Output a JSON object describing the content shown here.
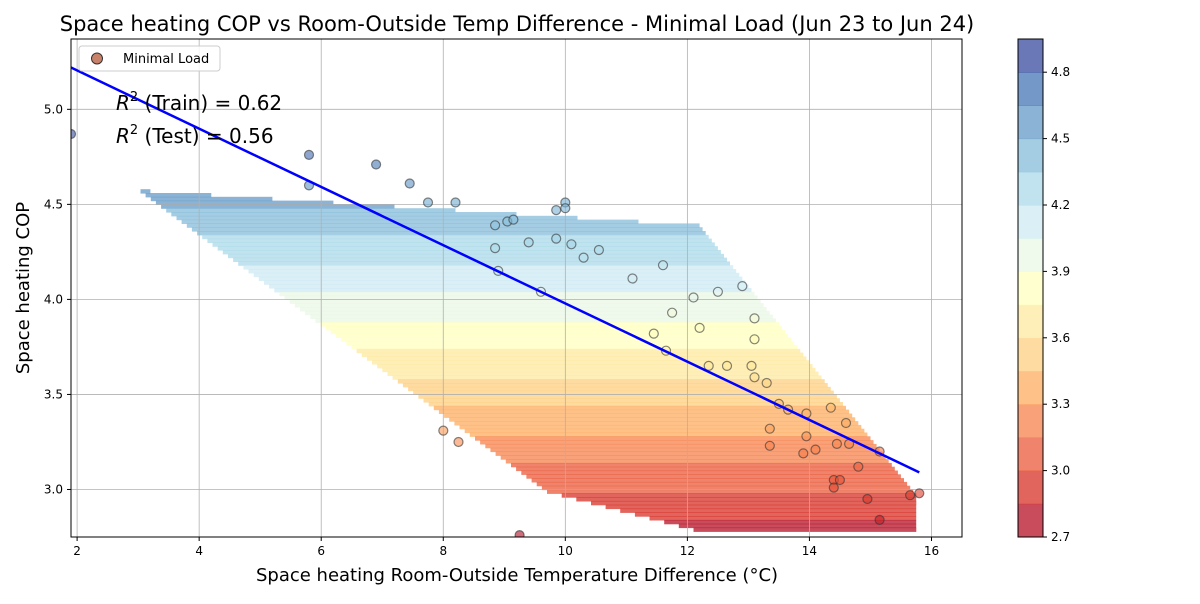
{
  "chart_data": {
    "type": "scatter",
    "title": "Space heating COP vs Room-Outside Temp Difference - Minimal Load (Jun 23 to Jun 24)",
    "xlabel": "Space heating Room-Outside Temperature Difference (°C)",
    "ylabel": "Space heating COP",
    "xlim": [
      1.9,
      16.5
    ],
    "ylim": [
      2.75,
      5.37
    ],
    "xticks": [
      2,
      4,
      6,
      8,
      10,
      12,
      14,
      16
    ],
    "yticks": [
      3.0,
      3.5,
      4.0,
      4.5,
      5.0
    ],
    "xtick_labels": [
      "2",
      "4",
      "6",
      "8",
      "10",
      "12",
      "14",
      "16"
    ],
    "ytick_labels": [
      "3.0",
      "3.5",
      "4.0",
      "4.5",
      "5.0"
    ],
    "grid": true,
    "legend": {
      "position": "top-left",
      "entries": [
        {
          "label": "Minimal Load",
          "marker": "circle",
          "color": "#c8826a"
        }
      ]
    },
    "annotations": [
      {
        "base": "R",
        "sup": "2",
        "text": " (Train) = 0.62"
      },
      {
        "base": "R",
        "sup": "2",
        "text": " (Test) = 0.56"
      }
    ],
    "regression_line": {
      "color": "#0000ff",
      "x": [
        1.9,
        15.8
      ],
      "y": [
        5.22,
        3.09
      ]
    },
    "colorbar": {
      "min": 2.7,
      "max": 4.95,
      "ticks": [
        2.7,
        3.0,
        3.3,
        3.6,
        3.9,
        4.2,
        4.5,
        4.8
      ],
      "tick_labels": [
        "2.7",
        "3.0",
        "3.3",
        "3.6",
        "3.9",
        "4.2",
        "4.5",
        "4.8"
      ],
      "level_step": 0.15,
      "colormap": "RdYlBu"
    },
    "points_edge_color": "#333333",
    "points": [
      [
        1.9,
        4.87
      ],
      [
        5.8,
        4.76
      ],
      [
        6.9,
        4.71
      ],
      [
        10.0,
        4.51
      ],
      [
        12.9,
        4.07
      ],
      [
        5.8,
        4.6
      ],
      [
        7.45,
        4.61
      ],
      [
        7.75,
        4.51
      ],
      [
        8.2,
        4.51
      ],
      [
        8.85,
        4.39
      ],
      [
        9.05,
        4.41
      ],
      [
        9.15,
        4.42
      ],
      [
        9.85,
        4.47
      ],
      [
        10.0,
        4.48
      ],
      [
        8.85,
        4.27
      ],
      [
        9.4,
        4.3
      ],
      [
        9.85,
        4.32
      ],
      [
        10.1,
        4.29
      ],
      [
        10.55,
        4.26
      ],
      [
        10.3,
        4.22
      ],
      [
        8.9,
        4.15
      ],
      [
        11.1,
        4.11
      ],
      [
        11.6,
        4.18
      ],
      [
        9.6,
        4.04
      ],
      [
        12.1,
        4.01
      ],
      [
        12.5,
        4.04
      ],
      [
        11.75,
        3.93
      ],
      [
        13.1,
        3.9
      ],
      [
        11.45,
        3.82
      ],
      [
        12.2,
        3.85
      ],
      [
        13.1,
        3.79
      ],
      [
        11.65,
        3.73
      ],
      [
        12.35,
        3.65
      ],
      [
        12.65,
        3.65
      ],
      [
        13.05,
        3.65
      ],
      [
        13.1,
        3.59
      ],
      [
        13.3,
        3.56
      ],
      [
        13.5,
        3.45
      ],
      [
        13.65,
        3.42
      ],
      [
        13.95,
        3.4
      ],
      [
        14.35,
        3.43
      ],
      [
        13.35,
        3.32
      ],
      [
        14.6,
        3.35
      ],
      [
        8.0,
        3.31
      ],
      [
        8.25,
        3.25
      ],
      [
        13.95,
        3.28
      ],
      [
        13.35,
        3.23
      ],
      [
        14.45,
        3.24
      ],
      [
        14.65,
        3.24
      ],
      [
        13.9,
        3.19
      ],
      [
        14.1,
        3.21
      ],
      [
        15.15,
        3.2
      ],
      [
        14.8,
        3.12
      ],
      [
        14.4,
        3.05
      ],
      [
        14.5,
        3.05
      ],
      [
        14.4,
        3.01
      ],
      [
        14.95,
        2.95
      ],
      [
        15.65,
        2.97
      ],
      [
        15.8,
        2.98
      ],
      [
        15.15,
        2.84
      ],
      [
        9.25,
        2.76
      ]
    ]
  }
}
